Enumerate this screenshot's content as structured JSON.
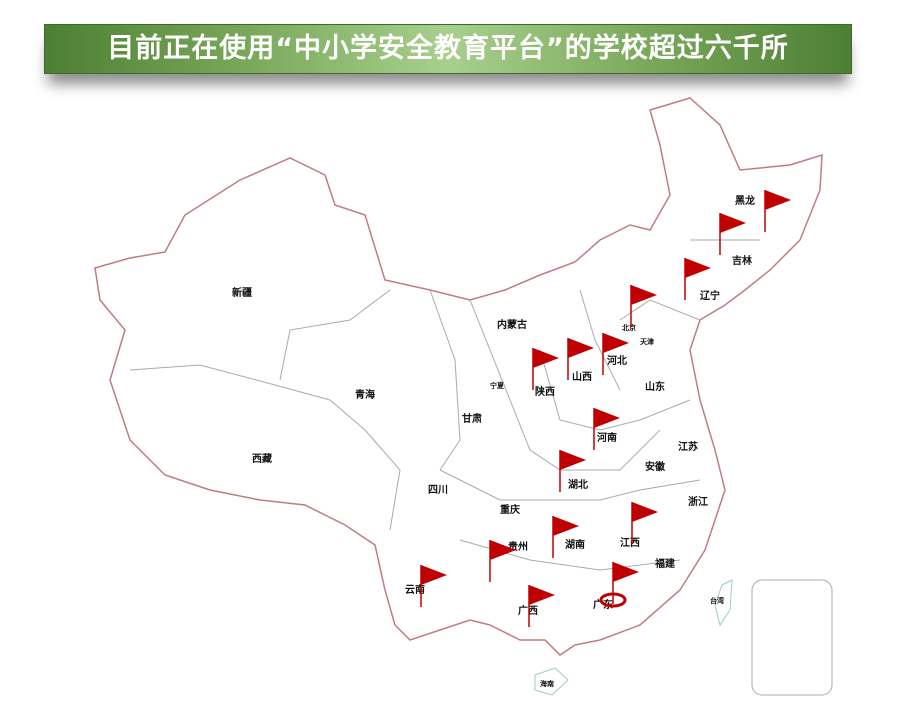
{
  "title": "目前正在使用“中小学安全教育平台”的学校超过六千所",
  "flag_color": "#c00000",
  "border_color": "#c07c80",
  "provinces": [
    "新疆",
    "西藏",
    "青海",
    "甘肃",
    "宁夏",
    "内蒙古",
    "陕西",
    "山西",
    "河北",
    "北京",
    "天津",
    "山东",
    "河南",
    "江苏",
    "安徽",
    "湖北",
    "四川",
    "重庆",
    "贵州",
    "湖南",
    "江西",
    "浙江",
    "福建",
    "云南",
    "广西",
    "广东",
    "台湾",
    "海南",
    "黑龙",
    "吉林",
    "辽宁"
  ],
  "flags": [
    "黑龙",
    "吉林",
    "辽宁",
    "北京",
    "河北",
    "山西",
    "陕西",
    "河南",
    "湖北",
    "江西",
    "湖南",
    "贵州",
    "云南",
    "广西",
    "广东"
  ],
  "highlighted_flag": "广东"
}
